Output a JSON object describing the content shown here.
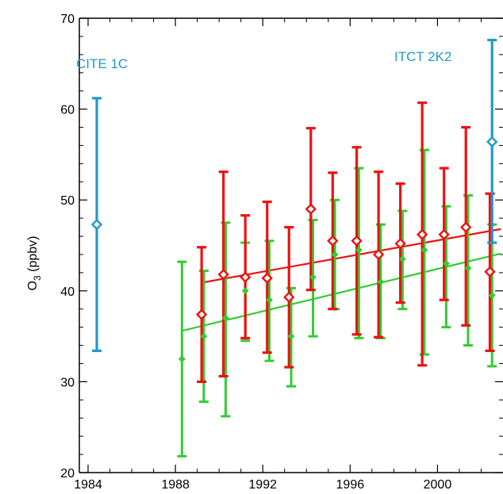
{
  "chart_data": {
    "type": "scatter",
    "ylabel": "O",
    "ylabel_sub": "3",
    "ylabel_unit": " (ppbv)",
    "xlim": [
      1983.6,
      2003
    ],
    "ylim": [
      20,
      70
    ],
    "x_ticks": [
      1984,
      1988,
      1992,
      1996,
      2000
    ],
    "y_ticks": [
      20,
      30,
      40,
      50,
      60,
      70
    ],
    "grid": false,
    "annotations": [
      {
        "text": "CITE 1C",
        "color": "#2299c8"
      },
      {
        "text": "ITCT 2K2",
        "color": "#2299c8"
      }
    ],
    "series": [
      {
        "color": "#33cc33",
        "marker": "filled-small",
        "points": [
          {
            "x": 1988.3,
            "y": 32.5,
            "lo": 21.8,
            "hi": 43.2
          },
          {
            "x": 1989.3,
            "y": 35.0,
            "lo": 27.8,
            "hi": 42.2
          },
          {
            "x": 1990.3,
            "y": 37.0,
            "lo": 26.2,
            "hi": 47.5
          },
          {
            "x": 1991.2,
            "y": 40.0,
            "lo": 34.5,
            "hi": 45.3
          },
          {
            "x": 1992.3,
            "y": 39.0,
            "lo": 32.3,
            "hi": 45.5
          },
          {
            "x": 1993.3,
            "y": 35.0,
            "lo": 29.5,
            "hi": 40.3
          },
          {
            "x": 1994.3,
            "y": 41.5,
            "lo": 35.0,
            "hi": 47.8
          },
          {
            "x": 1995.3,
            "y": 44.0,
            "lo": 38.0,
            "hi": 50.0
          },
          {
            "x": 1996.4,
            "y": 44.5,
            "lo": 34.8,
            "hi": 53.5
          },
          {
            "x": 1997.4,
            "y": 41.0,
            "lo": 34.8,
            "hi": 47.3
          },
          {
            "x": 1998.4,
            "y": 43.5,
            "lo": 38.0,
            "hi": 48.8
          },
          {
            "x": 1999.4,
            "y": 44.5,
            "lo": 33.0,
            "hi": 55.5
          },
          {
            "x": 2000.4,
            "y": 43.0,
            "lo": 36.0,
            "hi": 49.3
          },
          {
            "x": 2001.4,
            "y": 42.5,
            "lo": 34.0,
            "hi": 50.5
          },
          {
            "x": 2002.5,
            "y": 39.5,
            "lo": 31.7,
            "hi": 47.3
          }
        ],
        "trend": {
          "x0": 1988.3,
          "y0": 35.6,
          "x1": 2002.9,
          "y1": 44.1
        }
      },
      {
        "color": "#ee1111",
        "marker": "open-diamond",
        "points": [
          {
            "x": 1989.2,
            "y": 37.4,
            "lo": 30.0,
            "hi": 44.8
          },
          {
            "x": 1990.2,
            "y": 41.8,
            "lo": 30.6,
            "hi": 53.1
          },
          {
            "x": 1991.2,
            "y": 41.5,
            "lo": 34.8,
            "hi": 48.3
          },
          {
            "x": 1992.2,
            "y": 41.4,
            "lo": 33.2,
            "hi": 49.8
          },
          {
            "x": 1993.2,
            "y": 39.3,
            "lo": 31.6,
            "hi": 47.0
          },
          {
            "x": 1994.2,
            "y": 49.0,
            "lo": 40.1,
            "hi": 57.9
          },
          {
            "x": 1995.2,
            "y": 45.5,
            "lo": 38.0,
            "hi": 53.0
          },
          {
            "x": 1996.3,
            "y": 45.5,
            "lo": 35.2,
            "hi": 55.8
          },
          {
            "x": 1997.3,
            "y": 44.0,
            "lo": 34.9,
            "hi": 53.1
          },
          {
            "x": 1998.3,
            "y": 45.2,
            "lo": 38.7,
            "hi": 51.8
          },
          {
            "x": 1999.3,
            "y": 46.2,
            "lo": 31.8,
            "hi": 60.7
          },
          {
            "x": 2000.3,
            "y": 46.2,
            "lo": 39.0,
            "hi": 53.5
          },
          {
            "x": 2001.3,
            "y": 47.0,
            "lo": 36.2,
            "hi": 58.0
          },
          {
            "x": 2002.4,
            "y": 42.1,
            "lo": 33.4,
            "hi": 50.7
          }
        ],
        "trend": {
          "x0": 1989.2,
          "y0": 40.9,
          "x1": 2002.9,
          "y1": 46.8
        }
      },
      {
        "color": "#2299c8",
        "marker": "open-diamond",
        "points": [
          {
            "x": 1984.4,
            "y": 47.3,
            "lo": 33.4,
            "hi": 61.2
          },
          {
            "x": 2002.5,
            "y": 56.4,
            "lo": 45.3,
            "hi": 67.6
          }
        ]
      }
    ]
  }
}
